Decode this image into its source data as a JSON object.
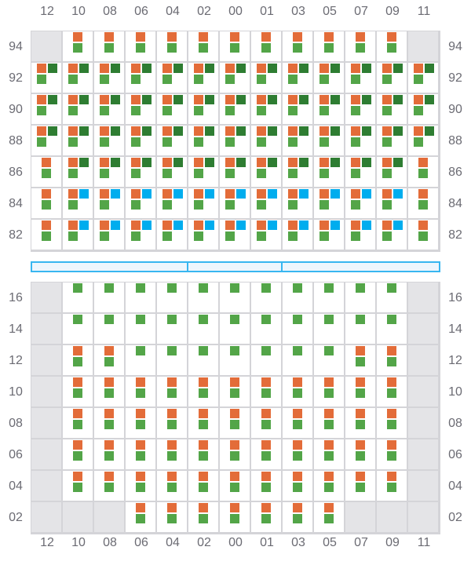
{
  "columns": [
    "12",
    "10",
    "08",
    "06",
    "04",
    "02",
    "00",
    "01",
    "03",
    "05",
    "07",
    "09",
    "11"
  ],
  "colors": {
    "O": "#e36c39",
    "D": "#2e7d32",
    "G": "#53a548",
    "B": "#00adee",
    "disabled": "#e4e4e7",
    "line": "#d4d4d8",
    "bar_border": "#38b6f0",
    "bar_fill": "#eef6fd"
  },
  "item_names": {
    "O": "orange-square-icon",
    "D": "dark-green-square-icon",
    "G": "green-square-icon",
    "B": "blue-square-icon"
  },
  "top_section": {
    "rows": [
      {
        "label": "94",
        "cells": [
          "x",
          "OG",
          "OG",
          "OG",
          "OG",
          "OG",
          "OG",
          "OG",
          "OG",
          "OG",
          "OG",
          "OG",
          "x"
        ]
      },
      {
        "label": "92",
        "cells": [
          "ODG",
          "ODG",
          "ODG",
          "ODG",
          "ODG",
          "ODG",
          "ODG",
          "ODG",
          "ODG",
          "ODG",
          "ODG",
          "ODG",
          "ODG"
        ]
      },
      {
        "label": "90",
        "cells": [
          "ODG",
          "ODG",
          "ODG",
          "ODG",
          "ODG",
          "ODG",
          "ODG",
          "ODG",
          "ODG",
          "ODG",
          "ODG",
          "ODG",
          "ODG"
        ]
      },
      {
        "label": "88",
        "cells": [
          "ODG",
          "ODG",
          "ODG",
          "ODG",
          "ODG",
          "ODG",
          "ODG",
          "ODG",
          "ODG",
          "ODG",
          "ODG",
          "ODG",
          "ODG"
        ]
      },
      {
        "label": "86",
        "cells": [
          "OG",
          "ODG",
          "ODG",
          "ODG",
          "ODG",
          "ODG",
          "ODG",
          "ODG",
          "ODG",
          "ODG",
          "ODG",
          "ODG",
          "OG"
        ]
      },
      {
        "label": "84",
        "cells": [
          "OG",
          "OBG",
          "OBG",
          "OBG",
          "OBG",
          "OBG",
          "OBG",
          "OBG",
          "OBG",
          "OBG",
          "OBG",
          "OBG",
          "OG"
        ]
      },
      {
        "label": "82",
        "cells": [
          "OG",
          "OBG",
          "OBG",
          "OBG",
          "OBG",
          "OBG",
          "OBG",
          "OBG",
          "OBG",
          "OBG",
          "OBG",
          "OBG",
          "OG"
        ]
      }
    ]
  },
  "divider_segments": 3,
  "bottom_section": {
    "rows": [
      {
        "label": "16",
        "cells": [
          "x",
          "G",
          "G",
          "G",
          "G",
          "G",
          "G",
          "G",
          "G",
          "G",
          "G",
          "G",
          "x"
        ]
      },
      {
        "label": "14",
        "cells": [
          "x",
          "G",
          "G",
          "G",
          "G",
          "G",
          "G",
          "G",
          "G",
          "G",
          "G",
          "G",
          "x"
        ]
      },
      {
        "label": "12",
        "cells": [
          "x",
          "OG",
          "OG",
          "G",
          "G",
          "G",
          "G",
          "G",
          "G",
          "G",
          "OG",
          "OG",
          "x"
        ]
      },
      {
        "label": "10",
        "cells": [
          "x",
          "OG",
          "OG",
          "OG",
          "OG",
          "OG",
          "OG",
          "OG",
          "OG",
          "OG",
          "OG",
          "OG",
          "x"
        ]
      },
      {
        "label": "08",
        "cells": [
          "x",
          "OG",
          "OG",
          "OG",
          "OG",
          "OG",
          "OG",
          "OG",
          "OG",
          "OG",
          "OG",
          "OG",
          "x"
        ]
      },
      {
        "label": "06",
        "cells": [
          "x",
          "OG",
          "OG",
          "OG",
          "OG",
          "OG",
          "OG",
          "OG",
          "OG",
          "OG",
          "OG",
          "OG",
          "x"
        ]
      },
      {
        "label": "04",
        "cells": [
          "x",
          "OG",
          "OG",
          "OG",
          "OG",
          "OG",
          "OG",
          "OG",
          "OG",
          "OG",
          "OG",
          "OG",
          "x"
        ]
      },
      {
        "label": "02",
        "cells": [
          "x",
          "x",
          "x",
          "OG",
          "OG",
          "OG",
          "OG",
          "OG",
          "OG",
          "OG",
          "x",
          "x",
          "x"
        ]
      }
    ]
  }
}
